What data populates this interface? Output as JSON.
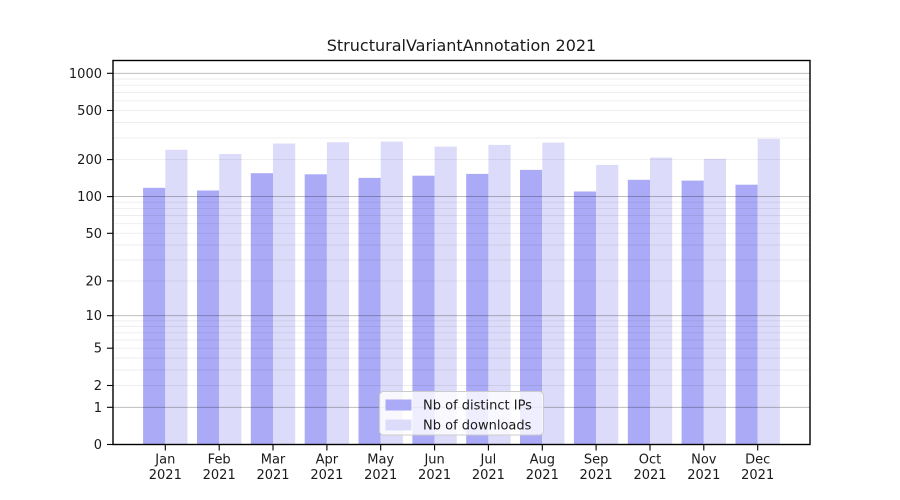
{
  "chart_data": {
    "type": "bar",
    "title": "StructuralVariantAnnotation 2021",
    "xlabel": "",
    "ylabel": "",
    "categories": [
      "Jan",
      "Feb",
      "Mar",
      "Apr",
      "May",
      "Jun",
      "Jul",
      "Aug",
      "Sep",
      "Oct",
      "Nov",
      "Dec"
    ],
    "year_label": "2021",
    "series": [
      {
        "key": "distinct-ips",
        "name": "Nb of distinct IPs",
        "color": "#aaaaf7",
        "values": [
          118,
          112,
          155,
          152,
          142,
          148,
          153,
          165,
          110,
          137,
          135,
          125
        ]
      },
      {
        "key": "downloads",
        "name": "Nb of downloads",
        "color": "#dcdcfa",
        "values": [
          240,
          222,
          270,
          277,
          280,
          255,
          263,
          275,
          181,
          208,
          203,
          295
        ]
      }
    ],
    "y_axis": {
      "scale": "log10(value+1)",
      "tick_values": [
        0,
        1,
        2,
        5,
        10,
        20,
        50,
        100,
        200,
        500,
        1000
      ],
      "major_grid_values": [
        1,
        10,
        100,
        1000
      ],
      "minor_grid_values": [
        2,
        3,
        4,
        5,
        6,
        7,
        8,
        9,
        20,
        30,
        40,
        50,
        60,
        70,
        80,
        90,
        200,
        300,
        400,
        500,
        600,
        700,
        800,
        900
      ],
      "ylim": [
        0,
        1270
      ]
    },
    "legend": {
      "position": "bottom-center"
    },
    "style": {
      "grid_major_color": "rgba(0,0,0,0.30)",
      "grid_minor_color": "rgba(0,0,0,0.07)",
      "spine_color": "#000000",
      "text_color": "#1a1a1a",
      "legend_bg": "rgba(255,255,255,0.8)",
      "legend_border": "#cccccc",
      "background": "#ffffff",
      "grid_on": true,
      "legend_on": true
    }
  }
}
